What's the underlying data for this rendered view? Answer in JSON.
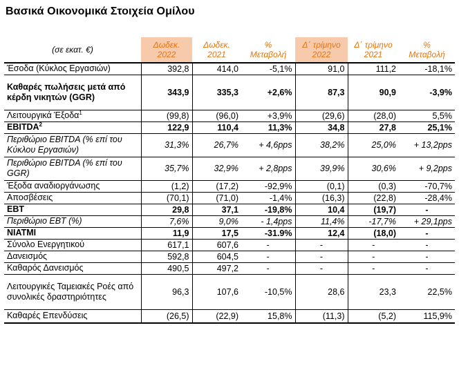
{
  "title": "Βασικά Οικονομικά Στοιχεία Ομίλου",
  "header": {
    "unit_label": "(σε εκατ. €)",
    "columns": [
      [
        "Δωδεκ.",
        "2022"
      ],
      [
        "Δωδεκ.",
        "2021"
      ],
      [
        "%",
        "Μεταβολή"
      ],
      [
        "Δ΄ τρίμηνο",
        "2022"
      ],
      [
        "Δ΄ τρίμηνο",
        "2021"
      ],
      [
        "%",
        "Μεταβολή"
      ]
    ]
  },
  "colors": {
    "accent_text": "#e8740c",
    "highlight_fill": "#f7caac"
  },
  "rows": [
    {
      "label": "Έσοδα (Κύκλος Εργασιών)",
      "values": [
        "392,8",
        "414,0",
        "-5,1%",
        "91,0",
        "111,2",
        "-18,1%"
      ],
      "style": "normal"
    },
    {
      "label": "Καθαρές πωλήσεις μετά από κέρδη νικητών (GGR)",
      "values": [
        "343,9",
        "335,3",
        "+2,6%",
        "87,3",
        "90,9",
        "-3,9%"
      ],
      "style": "bold"
    },
    {
      "label": "Λειτουργικά Έξοδα",
      "sup": "1",
      "values": [
        "(99,8)",
        "(96,0)",
        "+3,9%",
        "(29,6)",
        "(28,0)",
        "5,5%"
      ],
      "style": "normal"
    },
    {
      "label": "EBITDA",
      "sup": "2",
      "values": [
        "122,9",
        "110,4",
        "11,3%",
        "34,8",
        "27,8",
        "25,1%"
      ],
      "style": "bold"
    },
    {
      "label": "Περιθώριο EBITDA (% επί του Κύκλου Εργασιών)",
      "values": [
        "31,3%",
        "26,7%",
        "+ 4,6pps",
        "38,2%",
        "25,0%",
        "+ 13,2pps"
      ],
      "style": "italic"
    },
    {
      "label": "Περιθώριο EBITDA (% επί του GGR)",
      "values": [
        "35,7%",
        "32,9%",
        "+ 2,8pps",
        "39,9%",
        "30,6%",
        "+ 9,2pps"
      ],
      "style": "italic"
    },
    {
      "label": "Έξοδα αναδιοργάνωσης",
      "values": [
        "(1,2)",
        "(17,2)",
        "-92,9%",
        "(0,1)",
        "(0,3)",
        "-70,7%"
      ],
      "style": "normal"
    },
    {
      "label": "Αποσβέσεις",
      "values": [
        "(70,1)",
        "(71,0)",
        "-1,4%",
        "(16,3)",
        "(22,8)",
        "-28,4%"
      ],
      "style": "normal"
    },
    {
      "label": "EBT",
      "values": [
        "29,8",
        "37,1",
        "-19,8%",
        "10,4",
        "(19,7)",
        "-"
      ],
      "style": "bold"
    },
    {
      "label": "Περιθώριο EBT (%)",
      "values": [
        "7,6%",
        "9,0%",
        "- 1,4pps",
        "11,4%",
        "-17,7%",
        "+ 29,1pps"
      ],
      "style": "italic"
    },
    {
      "label": "NIATMI",
      "values": [
        "11,9",
        "17,5",
        "-31.9%",
        "12,4",
        "(18,0)",
        "-"
      ],
      "style": "bold"
    },
    {
      "label": "Σύνολο Ενεργητικού",
      "values": [
        "617,1",
        "607,6",
        "-",
        "-",
        "-",
        "-"
      ],
      "style": "normal"
    },
    {
      "label": "Δανεισμός",
      "values": [
        "592,8",
        "604,5",
        "-",
        "-",
        "-",
        "-"
      ],
      "style": "normal"
    },
    {
      "label": "Καθαρός Δανεισμός",
      "values": [
        "490,5",
        "497,2",
        "-",
        "-",
        "-",
        "-"
      ],
      "style": "normal"
    },
    {
      "label": "Λειτουργικές Ταμειακές Ροές από συνολικές δραστηριότητες",
      "values": [
        "96,3",
        "107,6",
        "-10,5%",
        "28,6",
        "23,3",
        "22,5%"
      ],
      "style": "normal"
    },
    {
      "label": "Καθαρές Επενδύσεις",
      "values": [
        "(26,5)",
        "(22,9)",
        "15,8%",
        "(11,3)",
        "(5,2)",
        "115,9%"
      ],
      "style": "normal"
    }
  ]
}
